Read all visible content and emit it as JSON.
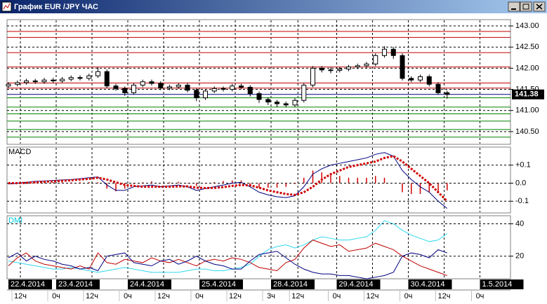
{
  "window": {
    "title": "График EUR /JPY ЧАС"
  },
  "time_axis": {
    "xlim": [
      0,
      168
    ],
    "date_ticks": [
      {
        "value": 0,
        "label": "22.4.2014"
      },
      {
        "value": 16,
        "label": "23.4.2014"
      },
      {
        "value": 40,
        "label": "24.4.2014"
      },
      {
        "value": 64,
        "label": "25.4.2014"
      },
      {
        "value": 88,
        "label": "28.4.2014"
      },
      {
        "value": 110,
        "label": "29.4.2014"
      },
      {
        "value": 134,
        "label": "30.4.2014"
      },
      {
        "value": 158,
        "label": "1.5.2014"
      }
    ],
    "hour_ticks": [
      {
        "value": 4,
        "label": "12ч"
      },
      {
        "value": 16,
        "label": "0ч"
      },
      {
        "value": 28,
        "label": "12ч"
      },
      {
        "value": 40,
        "label": "0ч"
      },
      {
        "value": 52,
        "label": "12ч"
      },
      {
        "value": 64,
        "label": "0ч"
      },
      {
        "value": 76,
        "label": "12ч"
      },
      {
        "value": 88,
        "label": "3ч"
      },
      {
        "value": 97,
        "label": "12ч"
      },
      {
        "value": 110,
        "label": "0ч"
      },
      {
        "value": 122,
        "label": "12ч"
      },
      {
        "value": 134,
        "label": "0ч"
      },
      {
        "value": 146,
        "label": "12ч"
      },
      {
        "value": 158,
        "label": "0ч"
      }
    ]
  },
  "chart_data": [
    {
      "type": "candlestick",
      "up_color": "#ffffff",
      "down_color": "#000000",
      "x": [
        0,
        3,
        6,
        9,
        12,
        15,
        18,
        21,
        24,
        27,
        30,
        33,
        36,
        39,
        42,
        45,
        48,
        51,
        54,
        57,
        60,
        63,
        66,
        69,
        72,
        75,
        78,
        81,
        84,
        87,
        90,
        93,
        96,
        99,
        102,
        105,
        108,
        111,
        114,
        117,
        120,
        123,
        126,
        129,
        132,
        135,
        138,
        141,
        144,
        147
      ],
      "open": [
        141.58,
        141.62,
        141.66,
        141.7,
        141.68,
        141.72,
        141.7,
        141.74,
        141.78,
        141.76,
        141.82,
        141.92,
        141.58,
        141.52,
        141.42,
        141.6,
        141.68,
        141.64,
        141.53,
        141.56,
        141.6,
        141.48,
        141.3,
        141.46,
        141.52,
        141.5,
        141.58,
        141.55,
        141.4,
        141.26,
        141.2,
        141.16,
        141.13,
        141.24,
        141.6,
        142.0,
        141.96,
        141.95,
        141.98,
        142.03,
        142.06,
        142.1,
        142.3,
        142.45,
        142.3,
        141.76,
        141.72,
        141.8,
        141.62,
        141.42
      ],
      "high": [
        141.67,
        141.71,
        141.75,
        141.75,
        141.77,
        141.77,
        141.79,
        141.83,
        141.83,
        141.87,
        142.02,
        141.97,
        141.63,
        141.57,
        141.65,
        141.73,
        141.73,
        141.69,
        141.61,
        141.65,
        141.65,
        141.53,
        141.51,
        141.57,
        141.57,
        141.63,
        141.63,
        141.6,
        141.45,
        141.31,
        141.25,
        141.21,
        141.29,
        141.65,
        142.05,
        142.05,
        142.02,
        142.03,
        142.08,
        142.11,
        142.15,
        142.35,
        142.52,
        142.5,
        142.35,
        141.81,
        141.85,
        141.85,
        141.67,
        141.47
      ],
      "low": [
        141.53,
        141.57,
        141.61,
        141.63,
        141.63,
        141.65,
        141.65,
        141.69,
        141.71,
        141.71,
        141.77,
        141.53,
        141.47,
        141.35,
        141.37,
        141.55,
        141.59,
        141.48,
        141.48,
        141.51,
        141.43,
        141.22,
        141.25,
        141.41,
        141.45,
        141.45,
        141.5,
        141.33,
        141.18,
        141.13,
        141.08,
        141.08,
        141.08,
        141.19,
        141.55,
        141.9,
        141.88,
        141.9,
        141.93,
        141.98,
        142.01,
        142.05,
        142.25,
        142.22,
        141.71,
        141.67,
        141.67,
        141.57,
        141.37,
        141.28
      ],
      "close": [
        141.62,
        141.66,
        141.7,
        141.68,
        141.72,
        141.7,
        141.74,
        141.78,
        141.76,
        141.82,
        141.92,
        141.58,
        141.52,
        141.42,
        141.6,
        141.68,
        141.64,
        141.53,
        141.56,
        141.6,
        141.48,
        141.3,
        141.46,
        141.52,
        141.5,
        141.58,
        141.55,
        141.4,
        141.26,
        141.2,
        141.16,
        141.13,
        141.24,
        141.6,
        142.0,
        141.96,
        141.95,
        141.98,
        142.03,
        142.06,
        142.1,
        142.3,
        142.45,
        142.3,
        141.76,
        141.72,
        141.8,
        141.62,
        141.42,
        141.38
      ],
      "last_price": 141.38,
      "resistance_levels": {
        "color": "#c00000",
        "values": [
          142.87,
          142.73,
          142.37,
          142.03,
          141.65,
          141.53
        ]
      },
      "support_levels": {
        "color": "#008000",
        "values": [
          141.3,
          141.08,
          140.92,
          140.75,
          140.55,
          140.37
        ]
      },
      "ylim": [
        140.2,
        143.15
      ],
      "yticks": [
        {
          "value": 140.5,
          "label": "140.50"
        },
        {
          "value": 141,
          "label": "141.00"
        },
        {
          "value": 141.5,
          "label": "141.50"
        },
        {
          "value": 142,
          "label": "142.00"
        },
        {
          "value": 142.5,
          "label": "142.50"
        },
        {
          "value": 143,
          "label": "143.00"
        }
      ]
    },
    {
      "type": "macd",
      "title": "MACD",
      "title_color": "#000000",
      "x": [
        0,
        3,
        6,
        9,
        12,
        15,
        18,
        21,
        24,
        27,
        30,
        33,
        36,
        39,
        42,
        45,
        48,
        51,
        54,
        57,
        60,
        63,
        66,
        69,
        72,
        75,
        78,
        81,
        84,
        87,
        90,
        93,
        96,
        99,
        102,
        105,
        108,
        111,
        114,
        117,
        120,
        123,
        126,
        129,
        132,
        135,
        138,
        141,
        144,
        147
      ],
      "macd_line": {
        "color": "#000080",
        "values": [
          -0.005,
          0,
          0.005,
          0.01,
          0.012,
          0.015,
          0.018,
          0.02,
          0.025,
          0.03,
          0.035,
          -0.01,
          -0.04,
          -0.04,
          -0.02,
          -0.015,
          -0.01,
          -0.02,
          -0.015,
          -0.01,
          -0.02,
          -0.04,
          -0.03,
          -0.02,
          -0.01,
          0,
          0.005,
          -0.02,
          -0.05,
          -0.065,
          -0.075,
          -0.08,
          -0.07,
          -0.02,
          0.05,
          0.08,
          0.1,
          0.11,
          0.12,
          0.13,
          0.14,
          0.16,
          0.17,
          0.15,
          0.07,
          0.02,
          -0.02,
          -0.05,
          -0.1,
          -0.14
        ]
      },
      "signal_line": {
        "color": "#d00000",
        "values": [
          0,
          0,
          0.002,
          0.005,
          0.008,
          0.01,
          0.013,
          0.016,
          0.02,
          0.024,
          0.03,
          0.02,
          0.005,
          -0.01,
          -0.015,
          -0.02,
          -0.02,
          -0.02,
          -0.02,
          -0.018,
          -0.018,
          -0.025,
          -0.027,
          -0.026,
          -0.022,
          -0.015,
          -0.01,
          -0.012,
          -0.025,
          -0.04,
          -0.05,
          -0.06,
          -0.065,
          -0.05,
          -0.02,
          0.02,
          0.05,
          0.07,
          0.09,
          0.1,
          0.11,
          0.12,
          0.14,
          0.15,
          0.12,
          0.08,
          0.04,
          0,
          -0.05,
          -0.1
        ]
      },
      "histogram": {
        "color": "#d00000",
        "values": [
          -0.005,
          0,
          0.003,
          0.005,
          0.004,
          0.005,
          0.005,
          0.004,
          0.005,
          0.006,
          0.005,
          -0.03,
          -0.045,
          -0.03,
          -0.005,
          0.005,
          0.01,
          0,
          0.005,
          0.008,
          -0.002,
          -0.015,
          -0.003,
          0.006,
          0.012,
          0.015,
          0.015,
          -0.008,
          -0.025,
          -0.025,
          -0.025,
          -0.02,
          -0.005,
          0.03,
          0.07,
          0.06,
          0.05,
          0.04,
          0.03,
          0.03,
          0.03,
          0.04,
          0.03,
          0,
          -0.05,
          -0.06,
          -0.06,
          -0.05,
          -0.05,
          -0.04
        ]
      },
      "ylim": [
        -0.165,
        0.2
      ],
      "yticks": [
        {
          "value": 0.1,
          "label": "+0.1"
        },
        {
          "value": 0,
          "label": "0.0"
        },
        -0.1
      ]
    },
    {
      "type": "dmi",
      "title": "DMI",
      "title_color": "#00c8e0",
      "x": [
        0,
        3,
        6,
        9,
        12,
        15,
        18,
        21,
        24,
        27,
        30,
        33,
        36,
        39,
        42,
        45,
        48,
        51,
        54,
        57,
        60,
        63,
        66,
        69,
        72,
        75,
        78,
        81,
        84,
        87,
        90,
        93,
        96,
        99,
        102,
        105,
        108,
        111,
        114,
        117,
        120,
        123,
        126,
        129,
        132,
        135,
        138,
        141,
        144,
        147
      ],
      "series": [
        {
          "color": "#30d8f0",
          "values": [
            17,
            16,
            15,
            14,
            13,
            12,
            12,
            13,
            12,
            11,
            10,
            11,
            12,
            13,
            12,
            11,
            10,
            10,
            10,
            10,
            11,
            12,
            12,
            11,
            11,
            12,
            13,
            15,
            20,
            24,
            26,
            27,
            25,
            27,
            30,
            32,
            31,
            30,
            30,
            31,
            32,
            36,
            42,
            40,
            36,
            33,
            31,
            29,
            30,
            34
          ]
        },
        {
          "color": "#c00000",
          "values": [
            14,
            19,
            22,
            17,
            15,
            14,
            13,
            12,
            14,
            12,
            22,
            16,
            15,
            18,
            17,
            16,
            19,
            17,
            16,
            18,
            16,
            14,
            17,
            18,
            17,
            19,
            18,
            16,
            13,
            12,
            11,
            16,
            18,
            25,
            30,
            28,
            26,
            27,
            23,
            24,
            25,
            28,
            26,
            24,
            20,
            17,
            14,
            12,
            10,
            8
          ]
        },
        {
          "color": "#000080",
          "values": [
            19,
            22,
            17,
            20,
            18,
            17,
            15,
            14,
            12,
            13,
            11,
            20,
            21,
            22,
            16,
            15,
            14,
            17,
            18,
            15,
            17,
            20,
            17,
            15,
            14,
            12,
            12,
            17,
            21,
            22,
            23,
            19,
            15,
            12,
            10,
            9,
            9,
            8,
            8,
            7,
            6,
            7,
            8,
            10,
            20,
            22,
            21,
            19,
            24,
            22
          ]
        }
      ],
      "ylim": [
        6,
        45
      ],
      "yticks": [
        20,
        40
      ]
    }
  ]
}
